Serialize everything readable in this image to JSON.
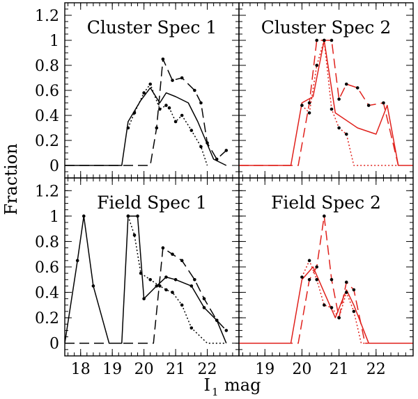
{
  "figure": {
    "ylabel": "Fraction",
    "xlabel": "I",
    "xlabel_subscript": "1",
    "xlabel_suffix": "mag"
  },
  "chart_data": [
    {
      "type": "line",
      "title": "Cluster Spec 1",
      "color": "#000000",
      "xlim": [
        17.5,
        23.0
      ],
      "ylim": [
        -0.1,
        1.3
      ],
      "yticks": [
        0,
        0.2,
        0.4,
        0.6,
        0.8,
        1,
        1.2
      ],
      "ytick_labels": [
        "0",
        "0.2",
        "0.4",
        "0.6",
        "0.8",
        "1",
        "1.2"
      ],
      "xticks": [
        18,
        19,
        20,
        21,
        22
      ],
      "xtick_labels": [],
      "series": [
        {
          "name": "solid",
          "style": "solid",
          "markers": false,
          "x": [
            17.5,
            19.3,
            19.5,
            19.9,
            20.2,
            20.5,
            20.7,
            21.0,
            21.4,
            21.7,
            22.2,
            22.6
          ],
          "y": [
            0,
            0,
            0.35,
            0.52,
            0.62,
            0.5,
            0.58,
            0.55,
            0.5,
            0.35,
            0.05,
            0
          ]
        },
        {
          "name": "dashed",
          "style": "dashed",
          "markers": true,
          "x": [
            17.5,
            20.2,
            20.4,
            20.6,
            20.9,
            21.2,
            21.6,
            21.8,
            22.0,
            22.3,
            22.6
          ],
          "y": [
            0,
            0,
            0.3,
            0.85,
            0.68,
            0.7,
            0.6,
            0.5,
            0.18,
            0.05,
            0.12
          ]
        },
        {
          "name": "dotted",
          "style": "dotted",
          "markers": true,
          "x": [
            19.5,
            19.7,
            20.0,
            20.2,
            20.5,
            20.7,
            20.8,
            21.0,
            21.2,
            21.5,
            21.8,
            22.0
          ],
          "y": [
            0.3,
            0.42,
            0.58,
            0.65,
            0.45,
            0.48,
            0.46,
            0.35,
            0.4,
            0.28,
            0.15,
            0
          ]
        }
      ]
    },
    {
      "type": "line",
      "title": "Cluster Spec 2",
      "color": "#e0201b",
      "xlim": [
        18.3,
        23.0
      ],
      "ylim": [
        -0.1,
        1.3
      ],
      "yticks": [
        0,
        0.2,
        0.4,
        0.6,
        0.8,
        1,
        1.2
      ],
      "ytick_labels": [],
      "xticks": [
        19,
        20,
        21,
        22
      ],
      "xtick_labels": [],
      "series": [
        {
          "name": "solid",
          "style": "solid",
          "markers": false,
          "x": [
            18.3,
            19.7,
            20.0,
            20.3,
            20.6,
            20.9,
            21.5,
            22.0,
            22.3,
            22.6,
            23.0
          ],
          "y": [
            0,
            0,
            0.5,
            0.55,
            1.0,
            0.42,
            0.3,
            0.25,
            0.48,
            0,
            0
          ]
        },
        {
          "name": "dashed",
          "style": "dashed",
          "markers": true,
          "x": [
            18.3,
            19.9,
            20.2,
            20.4,
            20.6,
            20.8,
            21.0,
            21.2,
            21.5,
            21.8,
            22.2,
            22.6
          ],
          "y": [
            0,
            0,
            0.5,
            1.0,
            1.0,
            1.0,
            0.53,
            0.65,
            0.62,
            0.48,
            0.5,
            0
          ]
        },
        {
          "name": "dotted",
          "style": "dotted",
          "markers": true,
          "x": [
            20.0,
            20.2,
            20.4,
            20.6,
            20.8,
            21.0,
            21.2,
            21.4,
            22.6
          ],
          "y": [
            0.48,
            0.42,
            0.8,
            1.0,
            0.45,
            0.3,
            0.25,
            0,
            0
          ]
        }
      ]
    },
    {
      "type": "line",
      "title": "Field Spec 1",
      "color": "#000000",
      "xlim": [
        17.5,
        23.0
      ],
      "ylim": [
        -0.1,
        1.3
      ],
      "yticks": [
        0,
        0.2,
        0.4,
        0.6,
        0.8,
        1,
        1.2
      ],
      "ytick_labels": [
        "0",
        "0.2",
        "0.4",
        "0.6",
        "0.8",
        "1",
        "1.2"
      ],
      "xticks": [
        18,
        19,
        20,
        21,
        22
      ],
      "xtick_labels": [
        "18",
        "19",
        "20",
        "21",
        "22"
      ],
      "series": [
        {
          "name": "solid",
          "style": "solid",
          "markers": true,
          "x": [
            17.5,
            17.9,
            18.1,
            18.4,
            18.9,
            19.3,
            19.5,
            19.8,
            20.0,
            20.4,
            20.7,
            21.0,
            21.5,
            21.9,
            22.3,
            22.6
          ],
          "y": [
            0,
            0.65,
            1.0,
            0.45,
            0,
            0,
            1.0,
            1.0,
            0.35,
            0.45,
            0.52,
            0.5,
            0.45,
            0.28,
            0.18,
            0
          ]
        },
        {
          "name": "dashed",
          "style": "dashed",
          "markers": true,
          "x": [
            17.5,
            20.3,
            20.6,
            20.9,
            21.2,
            21.6,
            21.9,
            22.3,
            22.6
          ],
          "y": [
            0,
            0,
            0.75,
            0.7,
            0.65,
            0.5,
            0.35,
            0.18,
            0.1
          ]
        },
        {
          "name": "dotted",
          "style": "dotted",
          "markers": true,
          "x": [
            19.5,
            19.7,
            19.9,
            20.2,
            20.5,
            20.7,
            20.9,
            21.2,
            21.5,
            22.0,
            22.6
          ],
          "y": [
            1.0,
            0.85,
            0.55,
            0.5,
            0.45,
            0.42,
            0.4,
            0.3,
            0.12,
            0,
            0
          ]
        }
      ]
    },
    {
      "type": "line",
      "title": "Field Spec 2",
      "color": "#e0201b",
      "xlim": [
        18.3,
        23.0
      ],
      "ylim": [
        -0.1,
        1.3
      ],
      "yticks": [
        0,
        0.2,
        0.4,
        0.6,
        0.8,
        1,
        1.2
      ],
      "ytick_labels": [],
      "xticks": [
        19,
        20,
        21,
        22
      ],
      "xtick_labels": [
        "19",
        "20",
        "21",
        "22"
      ],
      "series": [
        {
          "name": "solid",
          "style": "solid",
          "markers": false,
          "x": [
            18.3,
            19.7,
            20.0,
            20.3,
            20.6,
            20.9,
            21.2,
            21.4,
            21.8,
            23.0
          ],
          "y": [
            0,
            0,
            0.5,
            0.6,
            0.4,
            0.2,
            0.42,
            0.3,
            0,
            0
          ]
        },
        {
          "name": "dashed",
          "style": "dashed",
          "markers": true,
          "x": [
            18.3,
            19.9,
            20.2,
            20.4,
            20.6,
            20.8,
            21.0,
            21.2,
            21.4,
            21.7,
            23.0
          ],
          "y": [
            0,
            0,
            0.5,
            0.6,
            1.0,
            0.5,
            0.2,
            0.48,
            0.42,
            0,
            0
          ]
        },
        {
          "name": "dotted",
          "style": "dotted",
          "markers": true,
          "x": [
            20.0,
            20.2,
            20.4,
            20.6,
            20.8,
            21.0,
            21.2,
            21.4,
            21.6,
            23.0
          ],
          "y": [
            0.52,
            0.65,
            0.5,
            0.3,
            0.28,
            0.2,
            0.4,
            0.25,
            0,
            0
          ]
        }
      ]
    }
  ]
}
